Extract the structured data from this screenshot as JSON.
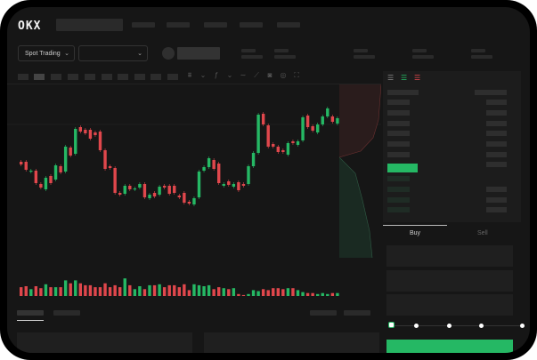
{
  "header": {
    "logo": "OKX"
  },
  "toolbar": {
    "market_selector": "Spot Trading",
    "pair_selector": ""
  },
  "order_form": {
    "tabs": [
      "Buy",
      "Sell"
    ],
    "active_tab": "Buy",
    "leverage_slider_position": 0,
    "submit_color": "#25b864"
  },
  "colors": {
    "up": "#25b864",
    "down": "#e0474c",
    "background": "#161616"
  },
  "icons": [
    "chevron-down-icon",
    "orderbook-both-icon",
    "orderbook-bids-icon",
    "orderbook-asks-icon",
    "indicator-icon",
    "ruler-icon",
    "camera-icon",
    "settings-icon",
    "fullscreen-icon"
  ],
  "chart_data": {
    "type": "candlestick",
    "candles": [
      [
        58,
        55
      ],
      [
        58,
        49
      ],
      [
        47,
        48
      ],
      [
        48,
        34
      ],
      [
        33,
        29
      ],
      [
        27,
        40
      ],
      [
        42,
        34
      ],
      [
        38,
        54
      ],
      [
        53,
        46
      ],
      [
        47,
        75
      ],
      [
        74,
        65
      ],
      [
        67,
        95
      ],
      [
        97,
        92
      ],
      [
        94,
        90
      ],
      [
        94,
        84
      ],
      [
        91,
        88
      ],
      [
        92,
        71
      ],
      [
        71,
        50
      ],
      [
        53,
        51
      ],
      [
        51,
        23
      ],
      [
        23,
        21
      ],
      [
        22,
        31
      ],
      [
        31,
        27
      ],
      [
        27,
        28
      ],
      [
        29,
        33
      ],
      [
        33,
        18
      ],
      [
        17,
        21
      ],
      [
        23,
        19
      ],
      [
        21,
        30
      ],
      [
        31,
        29
      ],
      [
        31,
        22
      ],
      [
        31,
        23
      ],
      [
        20,
        18
      ],
      [
        23,
        12
      ],
      [
        13,
        11
      ],
      [
        10,
        17
      ],
      [
        18,
        47
      ],
      [
        48,
        52
      ],
      [
        52,
        62
      ],
      [
        60,
        50
      ],
      [
        56,
        34
      ],
      [
        31,
        33
      ],
      [
        36,
        32
      ],
      [
        30,
        33
      ],
      [
        35,
        26
      ],
      [
        33,
        31
      ],
      [
        33,
        53
      ],
      [
        53,
        68
      ],
      [
        68,
        111
      ],
      [
        112,
        100
      ],
      [
        99,
        75
      ],
      [
        78,
        75
      ],
      [
        75,
        69
      ],
      [
        71,
        69
      ],
      [
        66,
        79
      ],
      [
        81,
        79
      ],
      [
        77,
        81
      ],
      [
        82,
        108
      ],
      [
        110,
        97
      ],
      [
        98,
        93
      ],
      [
        91,
        100
      ],
      [
        100,
        109
      ],
      [
        109,
        118
      ],
      [
        109,
        103
      ],
      [
        101,
        107
      ]
    ],
    "volumes": [
      9,
      10,
      7,
      10,
      8,
      12,
      9,
      9,
      9,
      16,
      13,
      16,
      13,
      11,
      11,
      9,
      9,
      13,
      9,
      11,
      9,
      18,
      11,
      7,
      10,
      7,
      11,
      11,
      12,
      9,
      11,
      11,
      9,
      12,
      6,
      12,
      11,
      10,
      11,
      7,
      9,
      8,
      7,
      8,
      2,
      1,
      2,
      6,
      5,
      7,
      6,
      8,
      8,
      7,
      8,
      8,
      6,
      4,
      3,
      3,
      2,
      3,
      2,
      3,
      3
    ],
    "title": "",
    "xlabel": "",
    "ylabel": ""
  }
}
